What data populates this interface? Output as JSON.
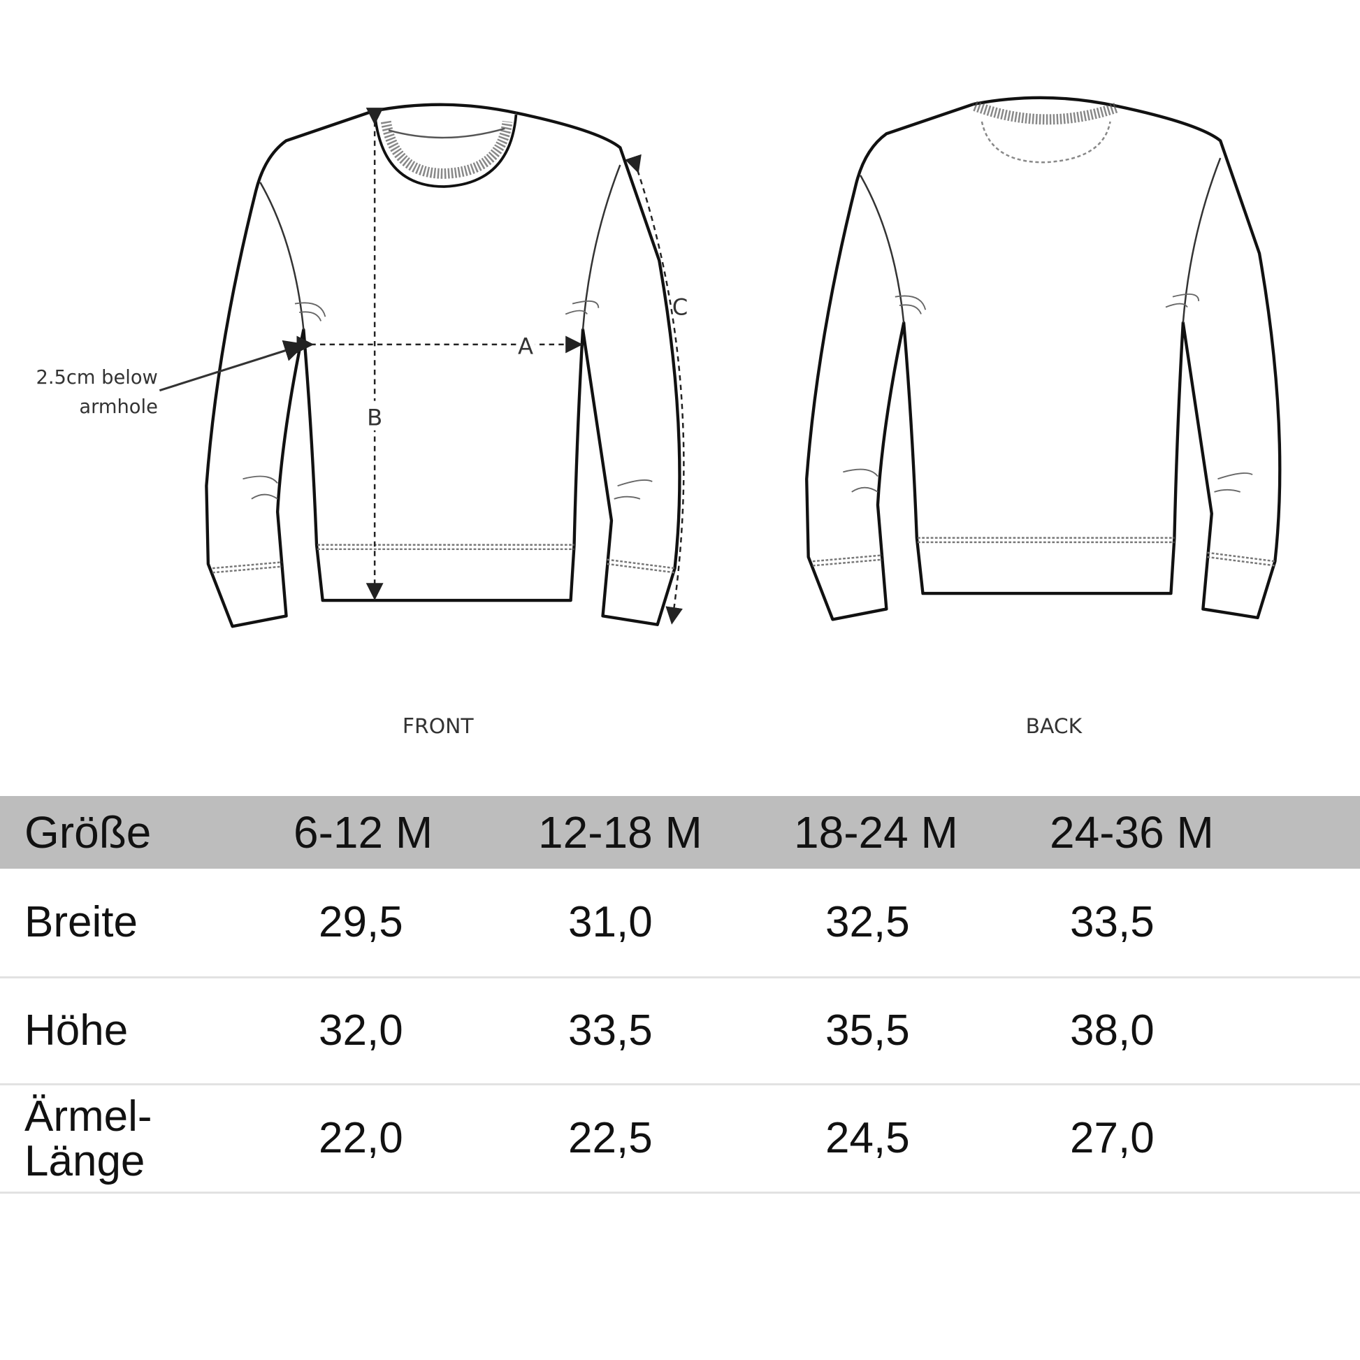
{
  "diagram": {
    "front_label": "FRONT",
    "back_label": "BACK",
    "annotation_line1": "2.5cm below",
    "annotation_line2": "armhole",
    "measure_a": "A",
    "measure_b": "B",
    "measure_c": "C"
  },
  "table": {
    "header": [
      "Größe",
      "6-12 M",
      "12-18 M",
      "18-24 M",
      "24-36 M"
    ],
    "rows": [
      {
        "label": "Breite",
        "values": [
          "29,5",
          "31,0",
          "32,5",
          "33,5"
        ]
      },
      {
        "label": "Höhe",
        "values": [
          "32,0",
          "33,5",
          "35,5",
          "38,0"
        ]
      },
      {
        "label_line1": "Ärmel-",
        "label_line2": "Länge",
        "values": [
          "22,0",
          "22,5",
          "24,5",
          "27,0"
        ]
      }
    ],
    "header_bg": "#bdbdbd"
  }
}
